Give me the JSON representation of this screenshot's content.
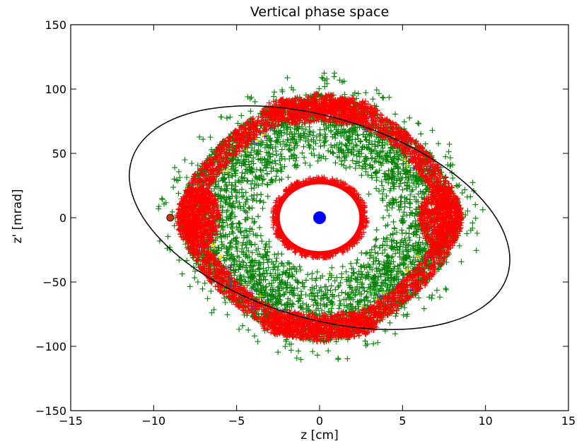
{
  "chart_data": {
    "type": "scatter",
    "title": "Vertical phase space",
    "xlabel": "z [cm]",
    "ylabel": "z' [mrad]",
    "xlim": [
      -15,
      15
    ],
    "ylim": [
      -150,
      150
    ],
    "xticks": [
      -15,
      -10,
      -5,
      0,
      5,
      10,
      15
    ],
    "yticks": [
      -150,
      -100,
      -50,
      0,
      50,
      100,
      150
    ],
    "grid": false,
    "series": [
      {
        "marker": "+",
        "color": "#008000",
        "z_range": [
          -9,
          9
        ],
        "zp_range": [
          -115,
          115
        ]
      },
      {
        "marker": "+",
        "color": "#ff0000",
        "z_range": [
          -8.5,
          8.5
        ],
        "zp_range": [
          -97,
          97
        ]
      },
      {
        "marker": "+",
        "color": "#9400d3",
        "z_range": [
          -6,
          6
        ],
        "zp_range": [
          -85,
          85
        ]
      },
      {
        "marker": "+",
        "color": "#ffd700",
        "z_range": [
          -6,
          6
        ],
        "zp_range": [
          -90,
          90
        ]
      },
      {
        "marker": "o",
        "color": "#0000ff",
        "points": [
          [
            0,
            0
          ]
        ]
      }
    ],
    "ellipse": {
      "color": "#000000",
      "center": [
        0,
        0
      ],
      "extreme_points": [
        [
          -7,
          102
        ],
        [
          7,
          -102
        ],
        [
          -11.4,
          68
        ],
        [
          11.4,
          -68
        ]
      ]
    },
    "marker_point": {
      "color": "#cc3300",
      "point": [
        -9,
        0
      ]
    }
  }
}
